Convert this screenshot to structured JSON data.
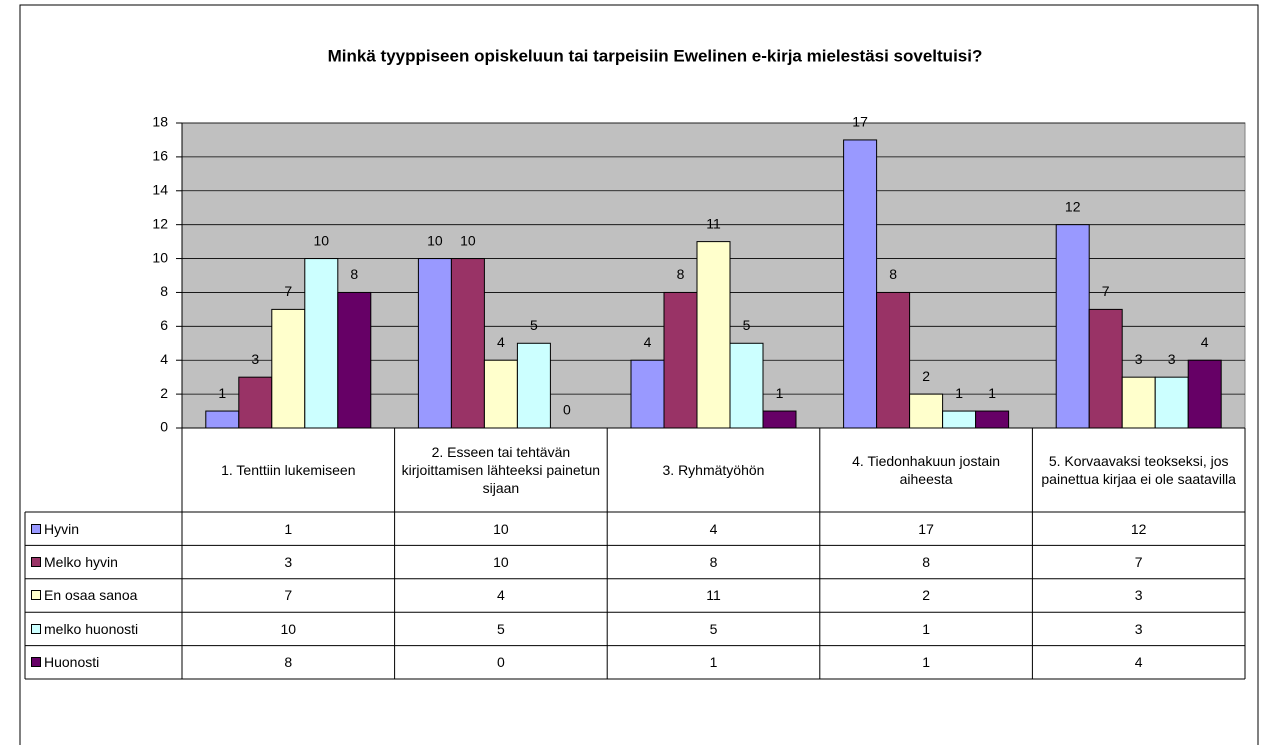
{
  "chart_data": {
    "type": "bar",
    "title": "Minkä tyyppiseen opiskeluun tai tarpeisiin Ewelinen e-kirja mielestäsi soveltuisi?",
    "categories": [
      "1. Tenttiin lukemiseen",
      "2. Esseen tai tehtävän kirjoittamisen lähteeksi painetun sijaan",
      "3. Ryhmätyöhön",
      "4. Tiedonhakuun jostain aiheesta",
      "5. Korvaavaksi teokseksi, jos painettua kirjaa ei ole saatavilla"
    ],
    "series": [
      {
        "name": "Hyvin",
        "color": "#9999ff",
        "values": [
          1,
          10,
          4,
          17,
          12
        ]
      },
      {
        "name": "Melko hyvin",
        "color": "#993366",
        "values": [
          3,
          10,
          8,
          8,
          7
        ]
      },
      {
        "name": "En osaa sanoa",
        "color": "#ffffcc",
        "values": [
          7,
          4,
          11,
          2,
          3
        ]
      },
      {
        "name": "melko huonosti",
        "color": "#ccffff",
        "values": [
          10,
          5,
          5,
          1,
          3
        ]
      },
      {
        "name": "Huonosti",
        "color": "#660066",
        "values": [
          8,
          0,
          1,
          1,
          4
        ]
      }
    ],
    "ylim": [
      0,
      18
    ],
    "yticks": [
      0,
      2,
      4,
      6,
      8,
      10,
      12,
      14,
      16,
      18
    ],
    "grid": true
  }
}
